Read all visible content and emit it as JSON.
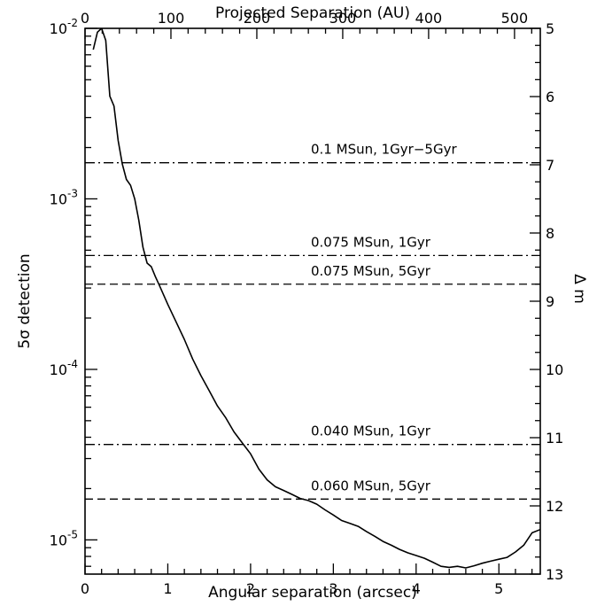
{
  "chart_data": {
    "type": "line",
    "axes": {
      "x_bottom": {
        "label": "Angular separation (arcsec)",
        "range": [
          0,
          5.5
        ],
        "ticks": [
          0,
          1,
          2,
          3,
          4,
          5
        ],
        "tick_labels": [
          "0",
          "1",
          "2",
          "3",
          "4",
          "5"
        ]
      },
      "x_top": {
        "label": "Projected Separation (AU)",
        "range": [
          0,
          530
        ],
        "ticks": [
          0,
          100,
          200,
          300,
          400,
          500
        ],
        "tick_labels": [
          "0",
          "100",
          "200",
          "300",
          "400",
          "500"
        ]
      },
      "y_left": {
        "label": "5σ detection",
        "scale": "log",
        "range": [
          6.3e-06,
          0.01
        ],
        "ticks": [
          1e-05,
          0.0001,
          0.001,
          0.01
        ],
        "tick_labels": [
          {
            "base": "10",
            "exp": "-5"
          },
          {
            "base": "10",
            "exp": "-4"
          },
          {
            "base": "10",
            "exp": "-3"
          },
          {
            "base": "10",
            "exp": "-2"
          }
        ]
      },
      "y_right": {
        "label": "Δ m",
        "range": [
          5,
          13
        ],
        "ticks": [
          5,
          6,
          7,
          8,
          9,
          10,
          11,
          12,
          13
        ],
        "tick_labels": [
          "5",
          "6",
          "7",
          "8",
          "9",
          "10",
          "11",
          "12",
          "13"
        ]
      }
    },
    "series": [
      {
        "style": "solid",
        "x": [
          0.1,
          0.15,
          0.2,
          0.25,
          0.3,
          0.35,
          0.4,
          0.45,
          0.5,
          0.55,
          0.6,
          0.65,
          0.7,
          0.75,
          0.8,
          0.85,
          0.9,
          1.0,
          1.1,
          1.2,
          1.3,
          1.4,
          1.5,
          1.6,
          1.7,
          1.8,
          1.9,
          2.0,
          2.1,
          2.2,
          2.3,
          2.4,
          2.5,
          2.6,
          2.7,
          2.8,
          2.9,
          3.0,
          3.1,
          3.2,
          3.3,
          3.4,
          3.5,
          3.6,
          3.7,
          3.8,
          3.9,
          4.0,
          4.1,
          4.2,
          4.3,
          4.4,
          4.5,
          4.6,
          4.7,
          4.8,
          4.9,
          5.0,
          5.1,
          5.2,
          5.3,
          5.4,
          5.5
        ],
        "y": [
          0.0075,
          0.0095,
          0.01,
          0.0085,
          0.004,
          0.0035,
          0.0022,
          0.0016,
          0.0013,
          0.0012,
          0.001,
          0.00075,
          0.00052,
          0.00042,
          0.0004,
          0.00035,
          0.00031,
          0.00024,
          0.00019,
          0.00015,
          0.000115,
          9.2e-05,
          7.5e-05,
          6.1e-05,
          5.2e-05,
          4.3e-05,
          3.7e-05,
          3.2e-05,
          2.6e-05,
          2.25e-05,
          2.05e-05,
          1.95e-05,
          1.85e-05,
          1.75e-05,
          1.7e-05,
          1.62e-05,
          1.5e-05,
          1.4e-05,
          1.3e-05,
          1.25e-05,
          1.2e-05,
          1.12e-05,
          1.05e-05,
          9.8e-06,
          9.3e-06,
          8.8e-06,
          8.4e-06,
          8.1e-06,
          7.8e-06,
          7.4e-06,
          7e-06,
          6.9e-06,
          7e-06,
          6.85e-06,
          7.05e-06,
          7.3e-06,
          7.5e-06,
          7.7e-06,
          7.9e-06,
          8.5e-06,
          9.3e-06,
          1.1e-05,
          1.15e-05
        ]
      }
    ],
    "reference_lines": [
      {
        "label": "0.1 MSun, 1Gyr−5Gyr",
        "style": "dashdot",
        "dm": 6.97
      },
      {
        "label": "0.075 MSun, 1Gyr",
        "style": "dashdot",
        "dm": 8.33
      },
      {
        "label": "0.075 MSun, 5Gyr",
        "style": "dashed",
        "dm": 8.75
      },
      {
        "label": "0.040 MSun, 1Gyr",
        "style": "dashdot",
        "dm": 11.1
      },
      {
        "label": "0.060 MSun, 5Gyr",
        "style": "dashed",
        "dm": 11.9
      }
    ]
  }
}
